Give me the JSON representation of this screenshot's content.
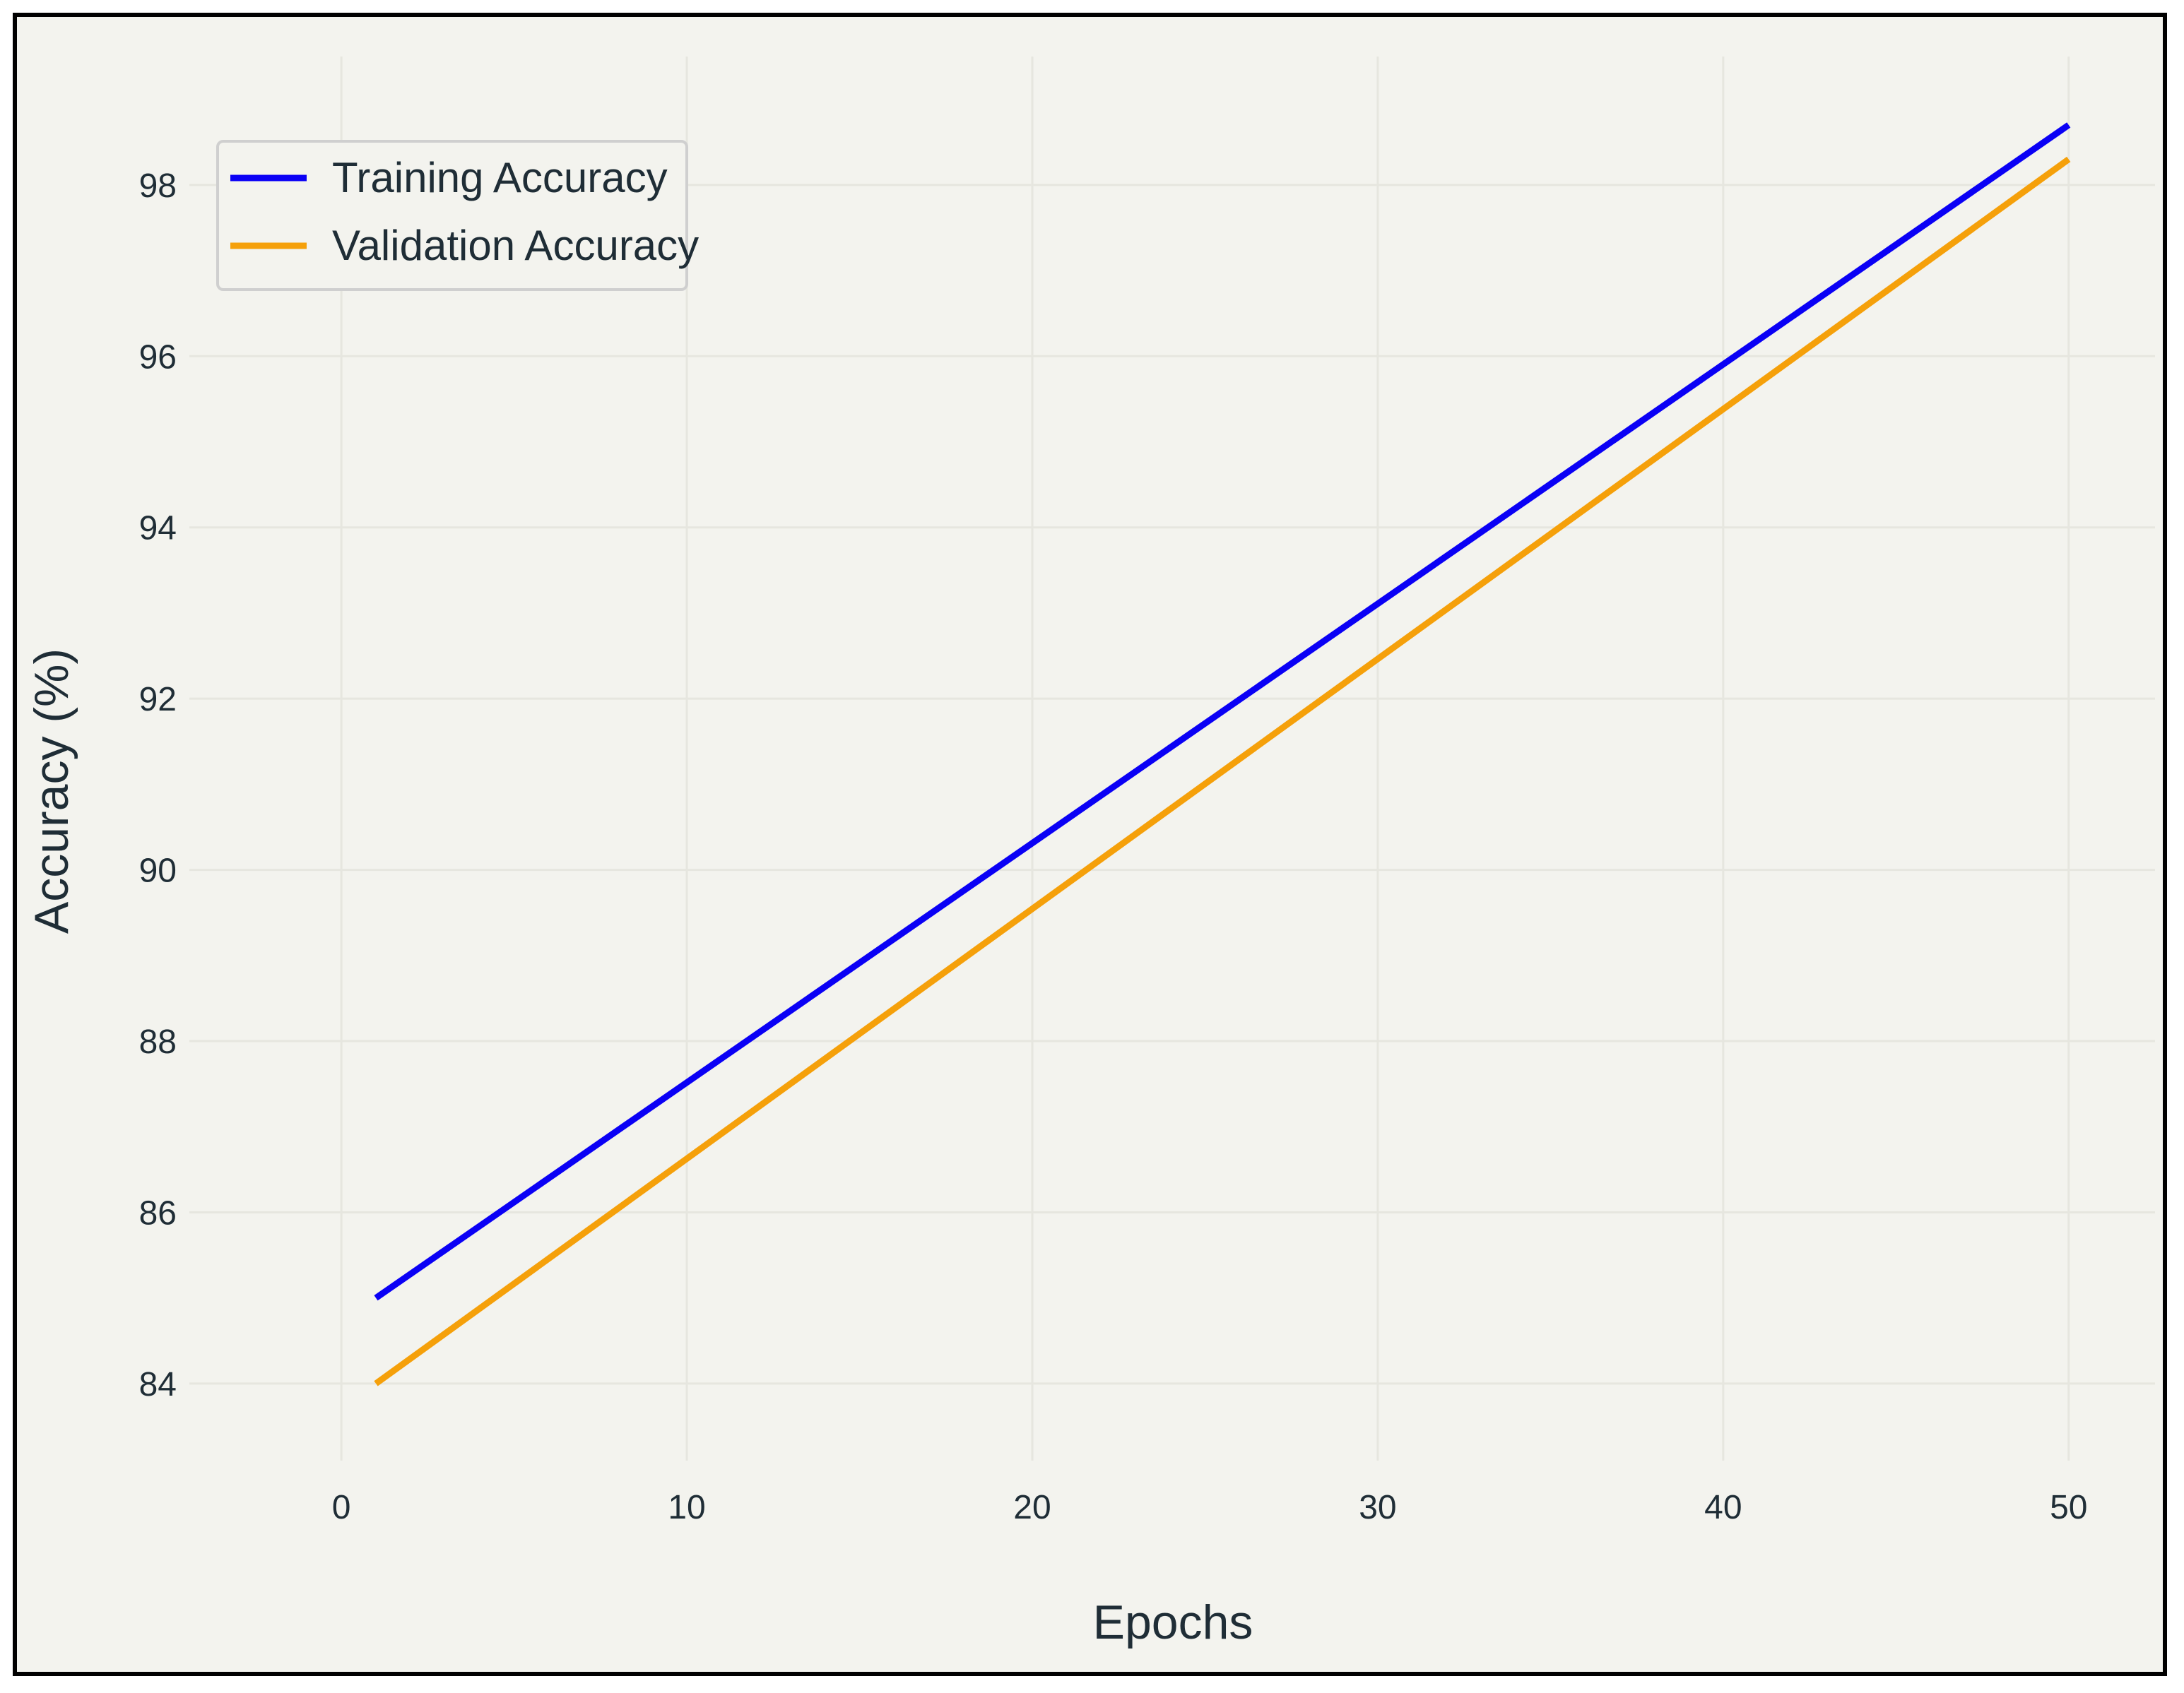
{
  "chart_data": {
    "type": "line",
    "title": "",
    "xlabel": "Epochs",
    "ylabel": "Accuracy (%)",
    "xlim": [
      -4.4,
      52.5
    ],
    "ylim": [
      83.1,
      99.5
    ],
    "xticks": [
      0,
      10,
      20,
      30,
      40,
      50
    ],
    "yticks": [
      84,
      86,
      88,
      90,
      92,
      94,
      96,
      98
    ],
    "grid": true,
    "legend_position": "top-left",
    "series": [
      {
        "name": "Training Accuracy",
        "color": "#0a00f5",
        "x": [
          1,
          50
        ],
        "y": [
          85.0,
          98.7
        ]
      },
      {
        "name": "Validation Accuracy",
        "color": "#f5a00a",
        "x": [
          1,
          50
        ],
        "y": [
          84.0,
          98.3
        ]
      }
    ]
  }
}
